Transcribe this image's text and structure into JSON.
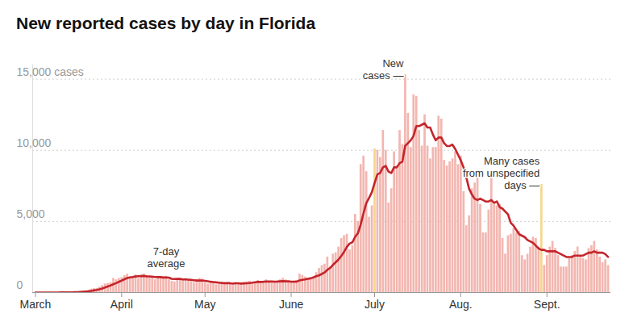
{
  "chart_data": {
    "type": "bar",
    "title": "New reported cases by day in Florida",
    "x": [
      0,
      1,
      2,
      3,
      4,
      5,
      6,
      7,
      8,
      9,
      10,
      11,
      12,
      13,
      14,
      15,
      16,
      17,
      18,
      19,
      20,
      21,
      22,
      23,
      24,
      25,
      26,
      27,
      28,
      29,
      30,
      31,
      32,
      33,
      34,
      35,
      36,
      37,
      38,
      39,
      40,
      41,
      42,
      43,
      44,
      45,
      46,
      47,
      48,
      49,
      50,
      51,
      52,
      53,
      54,
      55,
      56,
      57,
      58,
      59,
      60,
      61,
      62,
      63,
      64,
      65,
      66,
      67,
      68,
      69,
      70,
      71,
      72,
      73,
      74,
      75,
      76,
      77,
      78,
      79,
      80,
      81,
      82,
      83,
      84,
      85,
      86,
      87,
      88,
      89,
      90,
      91,
      92,
      93,
      94,
      95,
      96,
      97,
      98,
      99,
      100,
      101,
      102,
      103,
      104,
      105,
      106,
      107,
      108,
      109,
      110,
      111,
      112,
      113,
      114,
      115,
      116,
      117,
      118,
      119,
      120,
      121,
      122,
      123,
      124,
      125,
      126,
      127,
      128,
      129,
      130,
      131,
      132,
      133,
      134,
      135,
      136,
      137,
      138,
      139,
      140,
      141,
      142,
      143,
      144,
      145,
      146,
      147,
      148,
      149,
      150,
      151,
      152,
      153,
      154,
      155,
      156,
      157,
      158,
      159,
      160,
      161,
      162,
      163,
      164,
      165,
      166,
      167,
      168,
      169,
      170,
      171,
      172,
      173,
      174,
      175,
      176,
      177,
      178,
      179,
      180,
      181,
      182,
      183,
      184,
      185,
      186,
      187,
      188,
      189,
      190,
      191,
      192,
      193,
      194,
      195,
      196,
      197,
      198,
      199,
      200,
      201,
      202,
      203,
      204,
      205,
      206
    ],
    "xlim": [
      -1,
      207
    ],
    "xticks": [
      {
        "value": 0,
        "label": "March"
      },
      {
        "value": 31,
        "label": "April"
      },
      {
        "value": 61,
        "label": "May"
      },
      {
        "value": 92,
        "label": "June"
      },
      {
        "value": 122,
        "label": "July"
      },
      {
        "value": 153,
        "label": "Aug."
      },
      {
        "value": 184,
        "label": "Sept."
      }
    ],
    "ylim": [
      0,
      16000
    ],
    "yticks": [
      0,
      {
        "value": 5000,
        "label": "5,000"
      },
      {
        "value": 10000,
        "label": "10,000"
      },
      {
        "value": 15000,
        "label": "15,000 cases"
      }
    ],
    "grid": true,
    "series": [
      {
        "type": "bar",
        "color": "#f3b6b0",
        "values": [
          2,
          0,
          1,
          2,
          3,
          4,
          5,
          4,
          5,
          8,
          10,
          15,
          22,
          30,
          40,
          45,
          60,
          95,
          130,
          180,
          240,
          280,
          300,
          400,
          500,
          610,
          650,
          700,
          1000,
          900,
          1000,
          1050,
          1200,
          1300,
          1100,
          1150,
          1250,
          1000,
          1250,
          1300,
          1100,
          1050,
          1000,
          900,
          1000,
          1050,
          1100,
          1150,
          900,
          800,
          750,
          1000,
          1000,
          900,
          1000,
          850,
          750,
          700,
          900,
          1000,
          950,
          700,
          600,
          650,
          700,
          550,
          600,
          750,
          650,
          700,
          600,
          500,
          700,
          650,
          600,
          700,
          750,
          800,
          650,
          700,
          850,
          750,
          800,
          900,
          750,
          650,
          700,
          800,
          900,
          1000,
          900,
          750,
          700,
          650,
          800,
          1300,
          1200,
          1100,
          1000,
          950,
          1100,
          1400,
          1700,
          1900,
          2000,
          2500,
          1800,
          2700,
          2800,
          3200,
          3800,
          4000,
          4100,
          3000,
          3300,
          5500,
          5000,
          9000,
          9600,
          8500,
          5300,
          6100,
          null,
          10000,
          9500,
          11400,
          10000,
          6300,
          7300,
          9900,
          8900,
          11400,
          10400,
          15300,
          12600,
          10200,
          13900,
          13800,
          11400,
          10300,
          12500,
          10300,
          9400,
          10200,
          10200,
          12400,
          12200,
          9300,
          8900,
          9200,
          9400,
          9900,
          9000,
          9600,
          7100,
          4700,
          5400,
          7300,
          7700,
          8500,
          6200,
          4200,
          4200,
          5800,
          8100,
          6200,
          6100,
          6200,
          3800,
          2700,
          4000,
          4100,
          4500,
          4200,
          4300,
          2600,
          2300,
          2700,
          3200,
          3900,
          3800,
          3200,
          null,
          1900,
          2600,
          3200,
          3600,
          3100,
          2600,
          1800,
          1800,
          1800,
          2400,
          2600,
          2900,
          3200,
          2600,
          2400,
          2300,
          3100,
          3300,
          3600,
          3000,
          2500,
          2100,
          2300,
          1900
        ]
      },
      {
        "type": "bar",
        "color": "#f6d68a",
        "x": [
          122,
          182
        ],
        "values": [
          10100,
          7600
        ]
      },
      {
        "type": "line",
        "color": "#c4252b",
        "values": [
          0,
          0,
          1,
          1,
          1,
          2,
          3,
          3,
          4,
          5,
          6,
          8,
          10,
          14,
          19,
          25,
          34,
          47,
          63,
          83,
          113,
          148,
          185,
          232,
          289,
          355,
          426,
          494,
          580,
          659,
          752,
          836,
          936,
          1021,
          1064,
          1093,
          1129,
          1150,
          1157,
          1171,
          1143,
          1136,
          1115,
          1093,
          1086,
          1086,
          1057,
          1064,
          1050,
          964,
          950,
          964,
          956,
          924,
          921,
          907,
          886,
          864,
          843,
          843,
          850,
          821,
          793,
          757,
          736,
          714,
          693,
          664,
          657,
          671,
          657,
          629,
          650,
          650,
          629,
          643,
          650,
          671,
          693,
          721,
          743,
          743,
          757,
          779,
          771,
          771,
          764,
          771,
          786,
          800,
          786,
          786,
          764,
          757,
          771,
          850,
          893,
          921,
          964,
          1000,
          1064,
          1150,
          1206,
          1306,
          1407,
          1593,
          1729,
          1943,
          2129,
          2314,
          2571,
          2857,
          3200,
          3443,
          3529,
          3914,
          4171,
          4771,
          5557,
          6271,
          6643,
          7043,
          7700,
          8300,
          8400,
          8800,
          8900,
          8500,
          8400,
          8800,
          8800,
          9100,
          9200,
          10300,
          10500,
          10700,
          11000,
          11700,
          11700,
          11800,
          11900,
          11600,
          11600,
          11100,
          10700,
          10900,
          10900,
          10500,
          10300,
          10300,
          10400,
          10100,
          9700,
          9300,
          8800,
          8100,
          7300,
          6900,
          6600,
          6500,
          6600,
          6500,
          6400,
          6400,
          6500,
          6300,
          6400,
          6000,
          5900,
          5700,
          5500,
          4900,
          4700,
          4400,
          4100,
          4000,
          3900,
          3700,
          3600,
          3500,
          3300,
          3100,
          3000,
          3000,
          2900,
          2900,
          2900,
          2900,
          2800,
          2700,
          2600,
          2500,
          2500,
          2500,
          2600,
          2600,
          2600,
          2600,
          2700,
          2800,
          2800,
          2900,
          2800,
          2800,
          2800,
          2700,
          2500
        ]
      }
    ],
    "annotations": [
      {
        "text": "New\ncases —",
        "x": 133,
        "y": 15300
      },
      {
        "text": "7-day\naverage",
        "x": 47,
        "y": 1100
      },
      {
        "text": "Many cases\nfrom unspecified\ndays —",
        "x": 182,
        "y": 7600
      }
    ]
  }
}
